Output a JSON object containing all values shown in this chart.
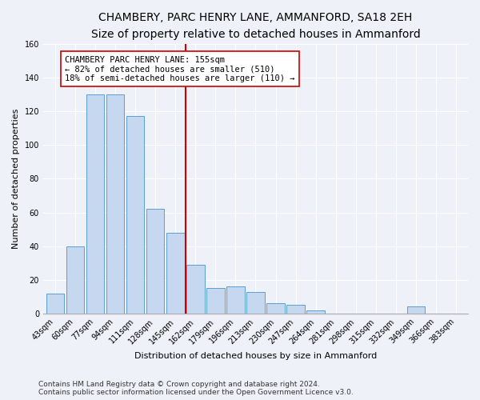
{
  "title": "CHAMBERY, PARC HENRY LANE, AMMANFORD, SA18 2EH",
  "subtitle": "Size of property relative to detached houses in Ammanford",
  "xlabel": "Distribution of detached houses by size in Ammanford",
  "ylabel": "Number of detached properties",
  "footer_line1": "Contains HM Land Registry data © Crown copyright and database right 2024.",
  "footer_line2": "Contains public sector information licensed under the Open Government Licence v3.0.",
  "bin_labels": [
    "43sqm",
    "60sqm",
    "77sqm",
    "94sqm",
    "111sqm",
    "128sqm",
    "145sqm",
    "162sqm",
    "179sqm",
    "196sqm",
    "213sqm",
    "230sqm",
    "247sqm",
    "264sqm",
    "281sqm",
    "298sqm",
    "315sqm",
    "332sqm",
    "349sqm",
    "366sqm",
    "383sqm"
  ],
  "bar_heights": [
    12,
    40,
    130,
    130,
    117,
    62,
    48,
    29,
    15,
    16,
    13,
    6,
    5,
    2,
    0,
    0,
    0,
    0,
    4,
    0,
    0
  ],
  "bar_color": "#c5d8f0",
  "bar_edge_color": "#5a9fd4",
  "vline_index": 7,
  "annotation_line1": "CHAMBERY PARC HENRY LANE: 155sqm",
  "annotation_line2": "← 82% of detached houses are smaller (510)",
  "annotation_line3": "18% of semi-detached houses are larger (110) →",
  "vline_color": "#cc0000",
  "annotation_box_edge": "#cc0000",
  "title_fontsize": 10,
  "subtitle_fontsize": 9,
  "axis_label_fontsize": 8,
  "tick_fontsize": 7,
  "annotation_fontsize": 7.5,
  "footer_fontsize": 6.5,
  "background_color": "#eef2f8",
  "plot_bg_color": "#eef2f8",
  "ylim_max": 160,
  "yticks": [
    0,
    20,
    40,
    60,
    80,
    100,
    120,
    140,
    160
  ]
}
